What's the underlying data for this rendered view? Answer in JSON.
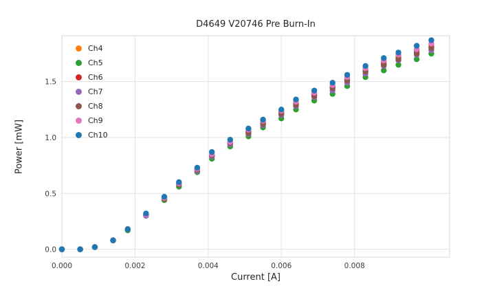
{
  "chart_data": {
    "type": "scatter",
    "title": "D4649 V20746 Pre Burn-In",
    "xlabel": "Current [A]",
    "ylabel": "Power [mW]",
    "xlim": [
      0.0,
      0.0106
    ],
    "ylim": [
      -0.07,
      1.91
    ],
    "grid": true,
    "legend_position": "upper-left",
    "xticks": {
      "values": [
        0.0,
        0.002,
        0.004,
        0.006,
        0.008
      ],
      "labels": [
        "0.000",
        "0.002",
        "0.004",
        "0.006",
        "0.008"
      ]
    },
    "yticks": {
      "values": [
        0.0,
        0.5,
        1.0,
        1.5
      ],
      "labels": [
        "0.0",
        "0.5",
        "1.0",
        "1.5"
      ]
    },
    "x": [
      0.0,
      0.0005,
      0.0009,
      0.0014,
      0.0018,
      0.0023,
      0.0028,
      0.0032,
      0.0037,
      0.0041,
      0.0046,
      0.0051,
      0.0055,
      0.006,
      0.0064,
      0.0069,
      0.0074,
      0.0078,
      0.0083,
      0.0088,
      0.0092,
      0.0097,
      0.0101
    ],
    "series": [
      {
        "name": "Ch4",
        "color": "#ff7f0e",
        "values": [
          0.0,
          0.0,
          0.02,
          0.08,
          0.18,
          0.31,
          0.46,
          0.59,
          0.72,
          0.85,
          0.96,
          1.06,
          1.14,
          1.23,
          1.31,
          1.39,
          1.46,
          1.53,
          1.61,
          1.68,
          1.73,
          1.78,
          1.83
        ]
      },
      {
        "name": "Ch5",
        "color": "#2ca02c",
        "values": [
          0.0,
          0.0,
          0.02,
          0.08,
          0.17,
          0.3,
          0.44,
          0.56,
          0.69,
          0.81,
          0.92,
          1.01,
          1.09,
          1.17,
          1.25,
          1.33,
          1.39,
          1.46,
          1.54,
          1.6,
          1.65,
          1.7,
          1.75
        ]
      },
      {
        "name": "Ch6",
        "color": "#d62728",
        "values": [
          0.0,
          0.0,
          0.02,
          0.08,
          0.18,
          0.31,
          0.46,
          0.58,
          0.71,
          0.84,
          0.95,
          1.05,
          1.13,
          1.22,
          1.3,
          1.38,
          1.45,
          1.51,
          1.59,
          1.66,
          1.71,
          1.76,
          1.81
        ]
      },
      {
        "name": "Ch7",
        "color": "#9467bd",
        "values": [
          0.0,
          0.0,
          0.02,
          0.08,
          0.18,
          0.3,
          0.45,
          0.58,
          0.7,
          0.83,
          0.94,
          1.03,
          1.11,
          1.2,
          1.28,
          1.36,
          1.42,
          1.49,
          1.57,
          1.64,
          1.69,
          1.74,
          1.78
        ]
      },
      {
        "name": "Ch8",
        "color": "#8c564b",
        "values": [
          0.0,
          0.0,
          0.02,
          0.08,
          0.18,
          0.31,
          0.45,
          0.58,
          0.71,
          0.84,
          0.95,
          1.04,
          1.12,
          1.21,
          1.29,
          1.37,
          1.44,
          1.51,
          1.59,
          1.65,
          1.7,
          1.75,
          1.8
        ]
      },
      {
        "name": "Ch9",
        "color": "#e377c2",
        "values": [
          0.0,
          0.0,
          0.02,
          0.08,
          0.18,
          0.31,
          0.46,
          0.59,
          0.72,
          0.85,
          0.96,
          1.07,
          1.15,
          1.24,
          1.32,
          1.4,
          1.47,
          1.54,
          1.62,
          1.69,
          1.74,
          1.79,
          1.84
        ]
      },
      {
        "name": "Ch10",
        "color": "#1f77b4",
        "values": [
          0.0,
          0.0,
          0.02,
          0.08,
          0.18,
          0.32,
          0.47,
          0.6,
          0.73,
          0.87,
          0.98,
          1.08,
          1.16,
          1.25,
          1.34,
          1.42,
          1.49,
          1.56,
          1.64,
          1.71,
          1.76,
          1.82,
          1.87
        ]
      }
    ],
    "style": {
      "grid_color": "#e2e2e2",
      "spine_color": "#d8d8d8",
      "marker_radius": 4.2
    }
  }
}
